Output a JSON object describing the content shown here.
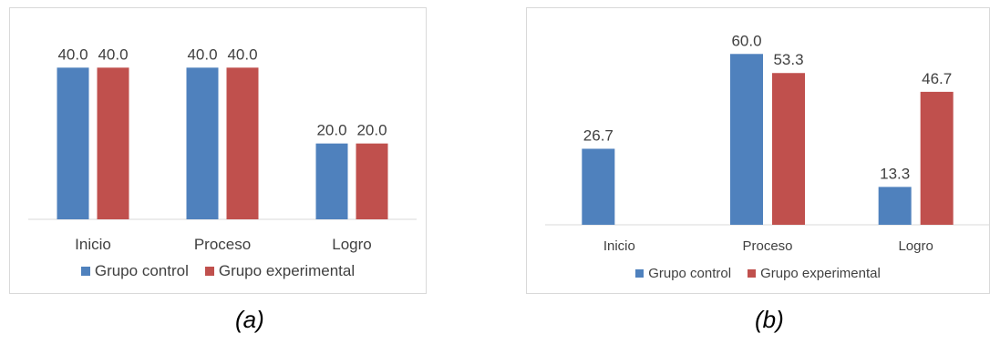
{
  "colors": {
    "control": "#4f81bd",
    "experimental": "#c0504d",
    "text": "#404040",
    "axis": "#d9d9d9"
  },
  "legend": {
    "control": "Grupo control",
    "experimental": "Grupo experimental"
  },
  "captions": {
    "a": "(a)",
    "b": "(b)"
  },
  "chart_data": [
    {
      "type": "bar",
      "categories": [
        "Inicio",
        "Proceso",
        "Logro"
      ],
      "series": [
        {
          "name": "Grupo control",
          "values": [
            40.0,
            40.0,
            20.0
          ]
        },
        {
          "name": "Grupo experimental",
          "values": [
            40.0,
            40.0,
            20.0
          ]
        }
      ],
      "value_labels": [
        [
          "40.0",
          "40.0",
          "20.0"
        ],
        [
          "40.0",
          "40.0",
          "20.0"
        ]
      ],
      "ylim": [
        0,
        48
      ],
      "legend_position": "bottom",
      "grid": false
    },
    {
      "type": "bar",
      "categories": [
        "Inicio",
        "Proceso",
        "Logro"
      ],
      "series": [
        {
          "name": "Grupo control",
          "values": [
            26.7,
            60.0,
            13.3
          ]
        },
        {
          "name": "Grupo experimental",
          "values": [
            null,
            53.3,
            46.7
          ]
        }
      ],
      "value_labels": [
        [
          "26.7",
          "60.0",
          "13.3"
        ],
        [
          null,
          "53.3",
          "46.7"
        ]
      ],
      "ylim": [
        0,
        70
      ],
      "legend_position": "bottom",
      "grid": false
    }
  ]
}
